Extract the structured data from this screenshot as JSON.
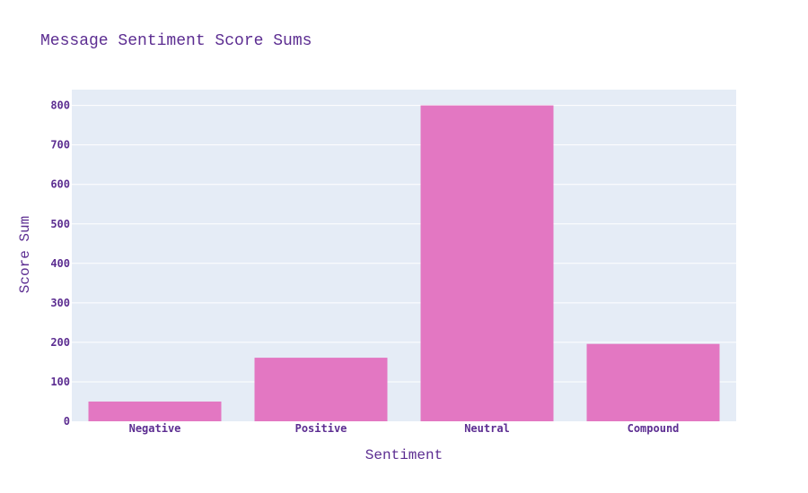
{
  "chart_data": {
    "type": "bar",
    "title": "Message Sentiment Score Sums",
    "xlabel": "Sentiment",
    "ylabel": "Score Sum",
    "categories": [
      "Negative",
      "Positive",
      "Neutral",
      "Compound"
    ],
    "values": [
      50,
      161,
      800,
      196
    ],
    "ylim": [
      0,
      840
    ],
    "yticks": [
      0,
      100,
      200,
      300,
      400,
      500,
      600,
      700,
      800
    ],
    "grid": true,
    "legend": "none",
    "colors": {
      "bar": "#e377c2",
      "text": "#5c2d91",
      "plot_bg": "#e5ecf6",
      "grid": "#ffffff"
    }
  }
}
